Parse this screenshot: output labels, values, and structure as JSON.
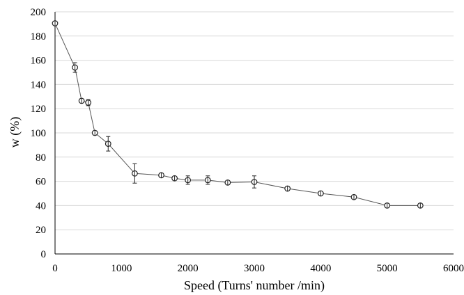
{
  "chart_data": {
    "type": "scatter",
    "xlabel": "Speed (Turns' number /min)",
    "ylabel": "w (%)",
    "xlim": [
      0,
      6000
    ],
    "ylim": [
      0,
      200
    ],
    "xticks": [
      0,
      1000,
      2000,
      3000,
      4000,
      5000,
      6000
    ],
    "yticks": [
      0,
      20,
      40,
      60,
      80,
      100,
      120,
      140,
      160,
      180,
      200
    ],
    "grid": "horizontal",
    "legend": "none",
    "line_color": "#555555",
    "marker": "open-circle",
    "series": [
      {
        "x": [
          0,
          300,
          400,
          500,
          600,
          800,
          1200,
          1600,
          1800,
          2000,
          2300,
          2600,
          3000,
          3500,
          4000,
          4500,
          5000,
          5500
        ],
        "y": [
          190.5,
          154,
          126.5,
          125,
          100,
          91,
          66.5,
          65,
          62.5,
          61,
          61,
          59,
          59.5,
          54,
          50,
          47,
          40,
          40
        ],
        "error": [
          1.5,
          4,
          1.5,
          2.5,
          1.5,
          6,
          8,
          1.5,
          1.5,
          3.5,
          3.5,
          1.5,
          5,
          1.5,
          1.5,
          1.5,
          1,
          1
        ]
      }
    ]
  }
}
